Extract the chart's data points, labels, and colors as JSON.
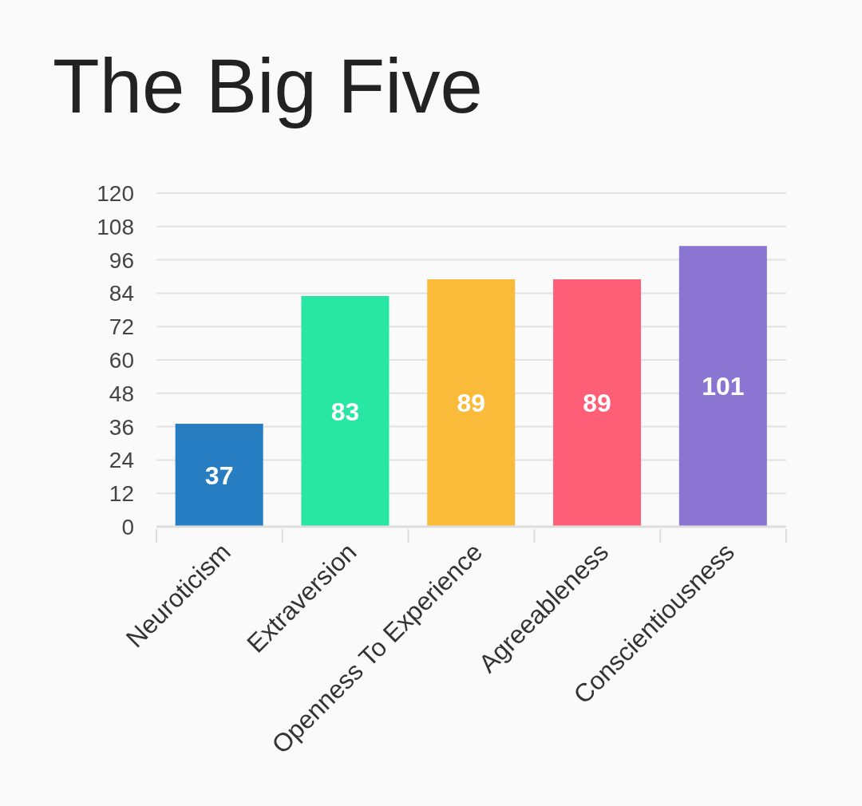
{
  "chart_data": {
    "type": "bar",
    "title": "The Big Five",
    "categories": [
      "Neuroticism",
      "Extraversion",
      "Openness To Experience",
      "Agreeableness",
      "Conscientiousness"
    ],
    "values": [
      37,
      83,
      89,
      89,
      101
    ],
    "colors": [
      "#277dc1",
      "#28e6a3",
      "#fbbb3a",
      "#fe5f76",
      "#8a75d3"
    ],
    "ylim": [
      0,
      120
    ],
    "yticks": [
      0,
      12,
      24,
      36,
      48,
      60,
      72,
      84,
      96,
      108,
      120
    ],
    "grid": "y",
    "data_labels": true
  }
}
